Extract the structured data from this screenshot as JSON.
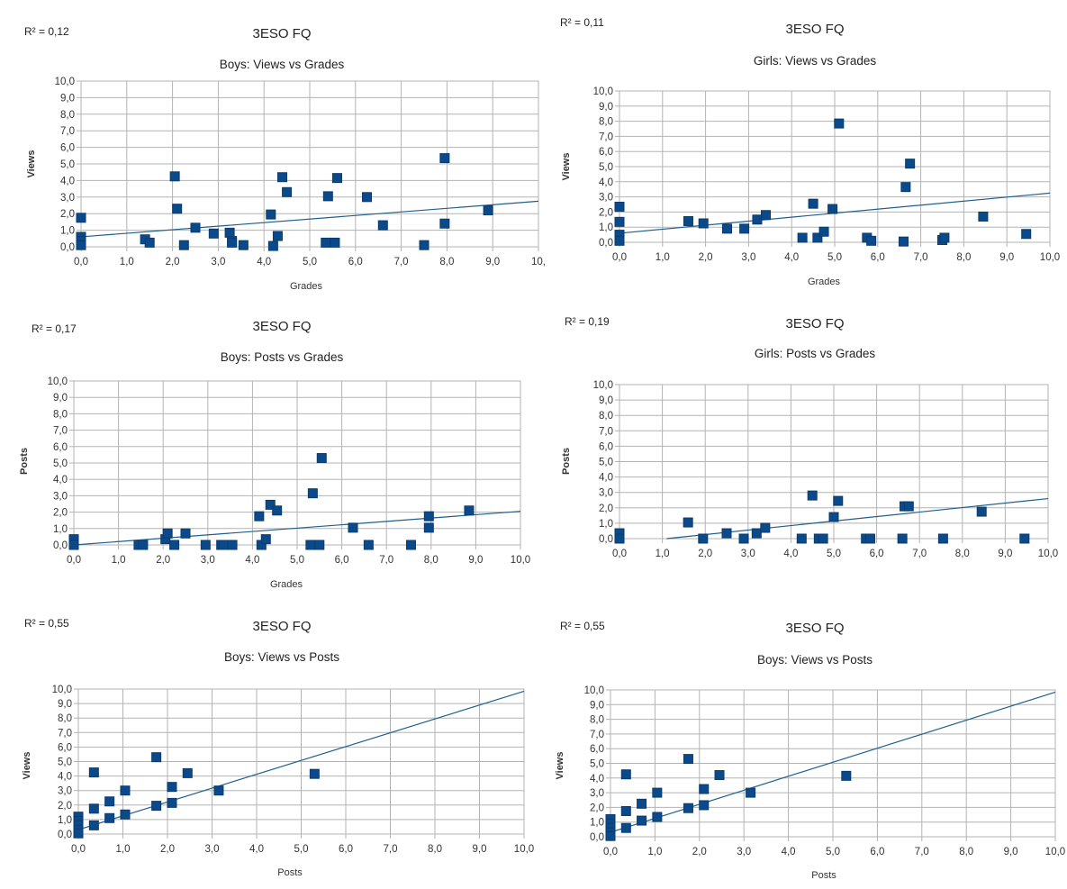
{
  "chart_data": [
    {
      "type": "scatter",
      "r2": "R² = 0,12",
      "title": "3ESO FQ",
      "subtitle": "Boys: Views vs Grades",
      "xlabel": "Grades",
      "ylabel": "Views",
      "xlim": [
        0,
        10
      ],
      "ylim": [
        0,
        10
      ],
      "x_ticks": [
        "0,0",
        "1,0",
        "2,0",
        "3,0",
        "4,0",
        "5,0",
        "6,0",
        "7,0",
        "8,0",
        "9,0",
        "10,"
      ],
      "y_ticks": [
        "0,0",
        "1,0",
        "2,0",
        "3,0",
        "4,0",
        "5,0",
        "6,0",
        "7,0",
        "8,0",
        "9,0",
        "10,0"
      ],
      "trendline": [
        [
          0,
          0.6
        ],
        [
          10,
          2.75
        ]
      ],
      "points": [
        [
          0,
          1.75
        ],
        [
          0,
          0.6
        ],
        [
          0,
          0.35
        ],
        [
          0,
          0.1
        ],
        [
          1.4,
          0.45
        ],
        [
          1.5,
          0.25
        ],
        [
          2.05,
          4.25
        ],
        [
          2.1,
          2.3
        ],
        [
          2.25,
          0.1
        ],
        [
          2.5,
          1.15
        ],
        [
          2.9,
          0.8
        ],
        [
          3.25,
          0.85
        ],
        [
          3.3,
          0.35
        ],
        [
          3.3,
          0.25
        ],
        [
          3.55,
          0.1
        ],
        [
          4.15,
          1.95
        ],
        [
          4.2,
          0.05
        ],
        [
          4.3,
          0.65
        ],
        [
          4.4,
          4.2
        ],
        [
          4.5,
          3.3
        ],
        [
          5.35,
          0.25
        ],
        [
          5.4,
          3.05
        ],
        [
          5.55,
          0.25
        ],
        [
          5.6,
          4.15
        ],
        [
          6.25,
          3.0
        ],
        [
          6.6,
          1.3
        ],
        [
          7.5,
          0.1
        ],
        [
          7.95,
          5.35
        ],
        [
          7.95,
          1.4
        ],
        [
          8.9,
          2.2
        ]
      ]
    },
    {
      "type": "scatter",
      "r2": "R² = 0,11",
      "title": "3ESO FQ",
      "subtitle": "Girls: Views vs Grades",
      "xlabel": "Grades",
      "ylabel": "Views",
      "xlim": [
        0,
        10
      ],
      "ylim": [
        0,
        10
      ],
      "x_ticks": [
        "0,0",
        "1,0",
        "2,0",
        "3,0",
        "4,0",
        "5,0",
        "6,0",
        "7,0",
        "8,0",
        "9,0",
        "10,0"
      ],
      "y_ticks": [
        "0,0",
        "1,0",
        "2,0",
        "3,0",
        "4,0",
        "5,0",
        "6,0",
        "7,0",
        "8,0",
        "9,0",
        "10,0"
      ],
      "trendline": [
        [
          0,
          0.6
        ],
        [
          10,
          3.25
        ]
      ],
      "points": [
        [
          0,
          2.35
        ],
        [
          0,
          1.35
        ],
        [
          0,
          0.5
        ],
        [
          0,
          0.1
        ],
        [
          1.6,
          1.4
        ],
        [
          1.95,
          1.25
        ],
        [
          2.5,
          0.9
        ],
        [
          2.9,
          0.9
        ],
        [
          3.2,
          1.5
        ],
        [
          3.4,
          1.8
        ],
        [
          4.25,
          0.3
        ],
        [
          4.5,
          2.55
        ],
        [
          4.6,
          0.3
        ],
        [
          4.75,
          0.7
        ],
        [
          4.95,
          2.2
        ],
        [
          5.1,
          7.85
        ],
        [
          5.75,
          0.3
        ],
        [
          5.85,
          0.1
        ],
        [
          6.6,
          0.05
        ],
        [
          6.65,
          3.65
        ],
        [
          6.75,
          5.2
        ],
        [
          7.5,
          0.15
        ],
        [
          7.55,
          0.3
        ],
        [
          8.45,
          1.7
        ],
        [
          9.45,
          0.55
        ]
      ]
    },
    {
      "type": "scatter",
      "r2": "R² = 0,17",
      "title": "3ESO FQ",
      "subtitle": "Boys: Posts vs Grades",
      "xlabel": "Grades",
      "ylabel": "Posts",
      "xlim": [
        0,
        10
      ],
      "ylim": [
        0,
        10
      ],
      "x_ticks": [
        "0,0",
        "1,0",
        "2,0",
        "3,0",
        "4,0",
        "5,0",
        "6,0",
        "7,0",
        "8,0",
        "9,0",
        "10,0"
      ],
      "y_ticks": [
        "0,0",
        "1,0",
        "2,0",
        "3,0",
        "4,0",
        "5,0",
        "6,0",
        "7,0",
        "8,0",
        "9,0",
        "10,0"
      ],
      "trendline": [
        [
          0,
          0.0
        ],
        [
          10,
          2.05
        ]
      ],
      "points": [
        [
          0,
          0.35
        ],
        [
          0,
          0.0
        ],
        [
          1.45,
          0.0
        ],
        [
          1.55,
          0.0
        ],
        [
          2.05,
          0.35
        ],
        [
          2.1,
          0.7
        ],
        [
          2.25,
          0.0
        ],
        [
          2.5,
          0.7
        ],
        [
          2.95,
          0.0
        ],
        [
          3.3,
          0.0
        ],
        [
          3.35,
          0.0
        ],
        [
          3.55,
          0.0
        ],
        [
          4.15,
          1.75
        ],
        [
          4.2,
          0.0
        ],
        [
          4.3,
          0.35
        ],
        [
          4.4,
          2.45
        ],
        [
          4.55,
          2.1
        ],
        [
          5.3,
          0.0
        ],
        [
          5.35,
          3.15
        ],
        [
          5.5,
          0.0
        ],
        [
          5.55,
          5.3
        ],
        [
          6.25,
          1.05
        ],
        [
          6.6,
          0.0
        ],
        [
          7.55,
          0.0
        ],
        [
          7.95,
          1.75
        ],
        [
          7.95,
          1.05
        ],
        [
          8.85,
          2.1
        ]
      ]
    },
    {
      "type": "scatter",
      "r2": "R² = 0,19",
      "title": "3ESO FQ",
      "subtitle": "Girls: Posts vs Grades",
      "xlabel": "",
      "ylabel": "Posts",
      "xlim": [
        0,
        10
      ],
      "ylim": [
        0,
        10
      ],
      "x_ticks": [
        "0,0",
        "1,0",
        "2,0",
        "3,0",
        "4,0",
        "5,0",
        "6,0",
        "7,0",
        "8,0",
        "9,0",
        "10,0"
      ],
      "y_ticks": [
        "0,0",
        "1,0",
        "2,0",
        "3,0",
        "4,0",
        "5,0",
        "6,0",
        "7,0",
        "8,0",
        "9,0",
        "10,0"
      ],
      "trendline": [
        [
          1.1,
          0.0
        ],
        [
          10,
          2.6
        ]
      ],
      "points": [
        [
          0,
          0.35
        ],
        [
          0,
          0.0
        ],
        [
          1.6,
          1.05
        ],
        [
          1.95,
          0.0
        ],
        [
          2.5,
          0.35
        ],
        [
          2.9,
          0.0
        ],
        [
          3.2,
          0.35
        ],
        [
          3.4,
          0.7
        ],
        [
          4.25,
          0.0
        ],
        [
          4.5,
          2.8
        ],
        [
          4.65,
          0.0
        ],
        [
          4.75,
          0.0
        ],
        [
          5.0,
          1.4
        ],
        [
          5.1,
          2.45
        ],
        [
          5.75,
          0.0
        ],
        [
          5.85,
          0.0
        ],
        [
          6.6,
          0.0
        ],
        [
          6.65,
          2.1
        ],
        [
          6.75,
          2.1
        ],
        [
          7.55,
          0.0
        ],
        [
          8.45,
          1.75
        ],
        [
          9.45,
          0.0
        ]
      ]
    },
    {
      "type": "scatter",
      "r2": "R² = 0,55",
      "title": "3ESO FQ",
      "subtitle": "Boys: Views vs Posts",
      "xlabel": "Posts",
      "ylabel": "Views",
      "xlim": [
        0,
        10
      ],
      "ylim": [
        0,
        10
      ],
      "x_ticks": [
        "0,0",
        "1,0",
        "2,0",
        "3,0",
        "4,0",
        "5,0",
        "6,0",
        "7,0",
        "8,0",
        "9,0",
        "10,0"
      ],
      "y_ticks": [
        "0,0",
        "1,0",
        "2,0",
        "3,0",
        "4,0",
        "5,0",
        "6,0",
        "7,0",
        "8,0",
        "9,0",
        "10,0"
      ],
      "trendline": [
        [
          0,
          0.3
        ],
        [
          10,
          9.85
        ]
      ],
      "points": [
        [
          0,
          1.2
        ],
        [
          0,
          0.9
        ],
        [
          0,
          0.6
        ],
        [
          0,
          0.3
        ],
        [
          0,
          0.05
        ],
        [
          0.35,
          4.25
        ],
        [
          0.35,
          1.75
        ],
        [
          0.35,
          0.6
        ],
        [
          0.7,
          2.25
        ],
        [
          0.7,
          1.1
        ],
        [
          1.05,
          3.0
        ],
        [
          1.05,
          1.35
        ],
        [
          1.75,
          5.3
        ],
        [
          1.75,
          1.95
        ],
        [
          2.1,
          3.25
        ],
        [
          2.1,
          2.15
        ],
        [
          2.45,
          4.2
        ],
        [
          3.15,
          3.0
        ],
        [
          5.3,
          4.15
        ]
      ]
    },
    {
      "type": "scatter",
      "r2": "R² = 0,55",
      "title": "3ESO FQ",
      "subtitle": "Boys: Views vs Posts",
      "xlabel": "Posts",
      "ylabel": "Views",
      "xlim": [
        0,
        10
      ],
      "ylim": [
        0,
        10
      ],
      "x_ticks": [
        "0,0",
        "1,0",
        "2,0",
        "3,0",
        "4,0",
        "5,0",
        "6,0",
        "7,0",
        "8,0",
        "9,0",
        "10,0"
      ],
      "y_ticks": [
        "0,0",
        "1,0",
        "2,0",
        "3,0",
        "4,0",
        "5,0",
        "6,0",
        "7,0",
        "8,0",
        "9,0",
        "10,0"
      ],
      "trendline": [
        [
          0,
          0.3
        ],
        [
          10,
          9.85
        ]
      ],
      "points": [
        [
          0,
          1.2
        ],
        [
          0,
          0.9
        ],
        [
          0,
          0.6
        ],
        [
          0,
          0.3
        ],
        [
          0,
          0.05
        ],
        [
          0.35,
          4.25
        ],
        [
          0.35,
          1.75
        ],
        [
          0.35,
          0.6
        ],
        [
          0.7,
          2.25
        ],
        [
          0.7,
          1.1
        ],
        [
          1.05,
          3.0
        ],
        [
          1.05,
          1.35
        ],
        [
          1.75,
          5.3
        ],
        [
          1.75,
          1.95
        ],
        [
          2.1,
          3.25
        ],
        [
          2.1,
          2.15
        ],
        [
          2.45,
          4.2
        ],
        [
          3.15,
          3.0
        ],
        [
          5.3,
          4.15
        ]
      ]
    }
  ]
}
